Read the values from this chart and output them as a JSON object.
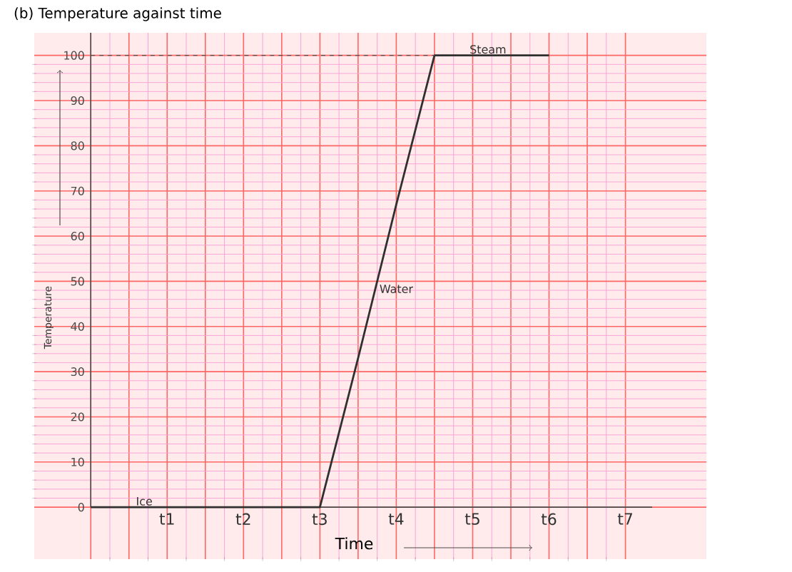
{
  "chart_data": {
    "type": "line",
    "title": "(b) Temperature against time",
    "xlabel": "Time",
    "ylabel": "Temperature",
    "categories": [
      null,
      null,
      "t1",
      null,
      "t2",
      null,
      "t3",
      null,
      "t4",
      null,
      "t5",
      null,
      "t6",
      null,
      "t7"
    ],
    "ylim": [
      -11.5,
      105
    ],
    "yticks": [
      0,
      10,
      20,
      30,
      40,
      50,
      60,
      70,
      80,
      90,
      100
    ],
    "grid": true,
    "marker": "none",
    "series": [
      {
        "color": "#303030",
        "values": [
          0,
          0,
          0,
          0,
          0,
          0,
          0,
          33,
          67,
          100,
          100,
          100,
          100,
          null,
          null
        ]
      },
      {
        "color": "#505050",
        "line_style": "dashed",
        "values": [
          100,
          100,
          100,
          100,
          100,
          100,
          100,
          100,
          100,
          100,
          null,
          null,
          null,
          null,
          null
        ]
      }
    ],
    "annotations": [
      "Ice",
      "Water",
      "Steam"
    ]
  }
}
